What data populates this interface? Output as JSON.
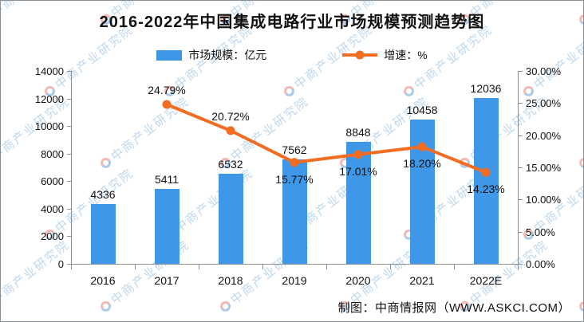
{
  "title": "2016-2022年中国集成电路行业市场规模预测趋势图",
  "legend": {
    "bar_label": "市场规模：亿元",
    "line_label": "增速：%"
  },
  "footer": "制图：中商情报网（WWW.ASKCI.COM）",
  "watermark": {
    "text": "中商产业研究院",
    "logo": "circle-swirl-logo"
  },
  "colors": {
    "bar": "#3F97E8",
    "line": "#F26C21",
    "axis": "#8a8f94",
    "text": "#111111",
    "watermark_blue": "rgba(125,175,220,0.50)",
    "watermark_red": "rgba(235,128,112,0.55)"
  },
  "chart_data": {
    "type": "bar",
    "subtype": "bar-line-combo",
    "title": "2016-2022年中国集成电路行业市场规模预测趋势图",
    "categories": [
      "2016",
      "2017",
      "2018",
      "2019",
      "2020",
      "2021",
      "2022E"
    ],
    "series": [
      {
        "name": "市场规模：亿元",
        "type": "bar",
        "axis": "left",
        "values": [
          4336,
          5411,
          6532,
          7562,
          8848,
          10458,
          12036
        ],
        "value_labels": [
          "4336",
          "5411",
          "6532",
          "7562",
          "8848",
          "10458",
          "12036"
        ]
      },
      {
        "name": "增速：%",
        "type": "line",
        "axis": "right",
        "values": [
          null,
          24.79,
          20.72,
          15.77,
          17.01,
          18.2,
          14.23
        ],
        "value_labels": [
          null,
          "24.79%",
          "20.72%",
          "15.77%",
          "17.01%",
          "18.20%",
          "14.23%"
        ],
        "label_pos": [
          null,
          "above",
          "above",
          "below",
          "below",
          "below",
          "below"
        ]
      }
    ],
    "left_axis": {
      "min": 0,
      "max": 14000,
      "step": 2000,
      "tick_labels": [
        "14000",
        "12000",
        "10000",
        "8000",
        "6000",
        "4000",
        "2000",
        "0"
      ]
    },
    "right_axis": {
      "min": 0,
      "max": 30,
      "step": 5,
      "tick_labels": [
        "30.00%",
        "25.00%",
        "20.00%",
        "15.00%",
        "10.00%",
        "5.00%",
        "0.00%"
      ]
    },
    "grid": false,
    "legend_position": "top-center"
  }
}
